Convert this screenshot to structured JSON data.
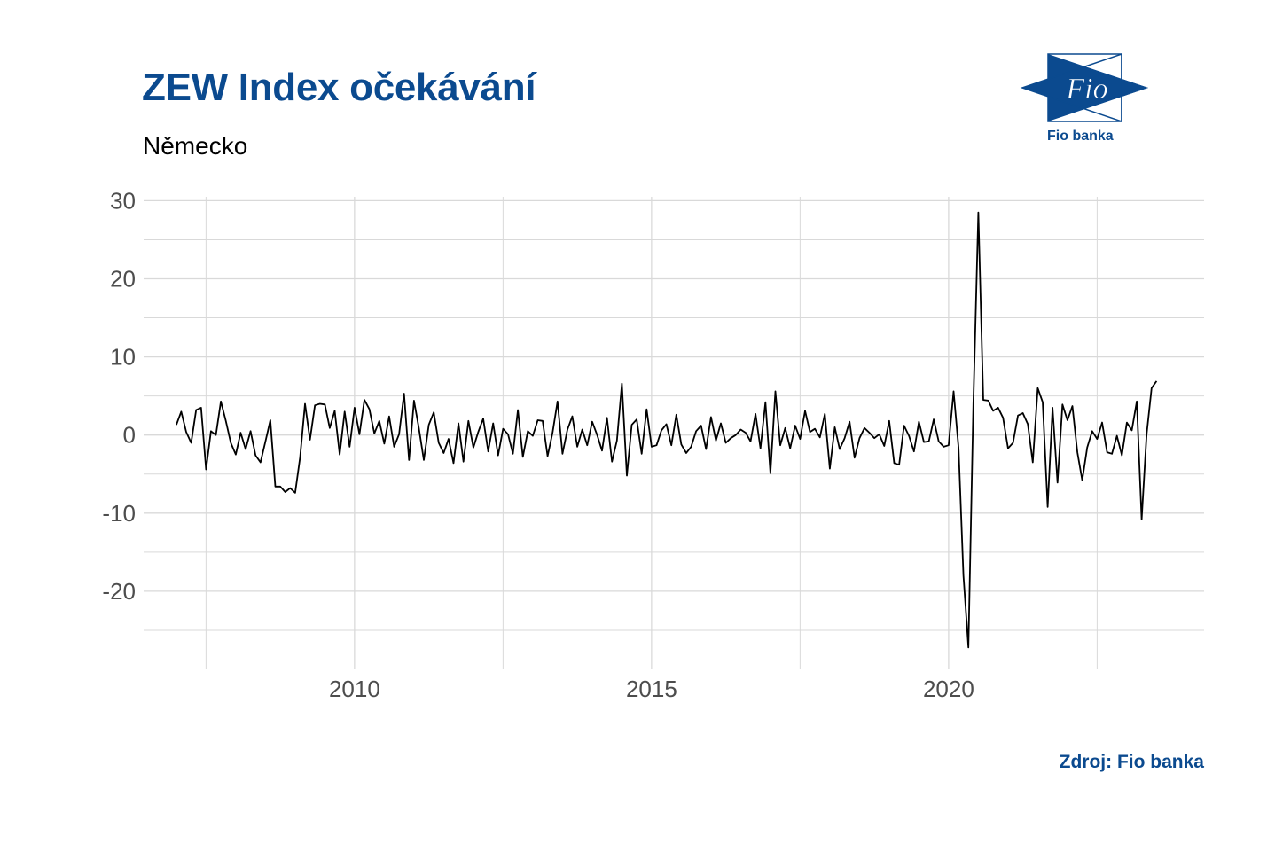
{
  "header": {
    "title": "ZEW Index očekávání",
    "subtitle": "Německo"
  },
  "logo": {
    "mark_text": "Fio",
    "label": "Fio banka"
  },
  "footer": {
    "source": "Zdroj: Fio banka"
  },
  "colors": {
    "brand": "#0b4a8f",
    "line": "#000000",
    "grid": "#d9d9d9"
  },
  "chart_data": {
    "type": "line",
    "title": "ZEW Index očekávání",
    "subtitle": "Německo",
    "xlabel": "",
    "ylabel": "",
    "xlim": [
      2006.45,
      2024.3
    ],
    "ylim": [
      -30,
      30.5
    ],
    "x_ticks": [
      2010,
      2015,
      2020
    ],
    "y_ticks": [
      30,
      20,
      10,
      0,
      -10,
      -20
    ],
    "x_tick_labels": [
      "2010",
      "2015",
      "2020"
    ],
    "y_tick_labels": [
      "30",
      "20",
      "10",
      "0",
      "-10",
      "-20"
    ],
    "grid": true,
    "legend": "none",
    "series": [
      {
        "x_start": 2007.0,
        "x_step": 0.0833333,
        "values": [
          1.3,
          3.0,
          0.4,
          -1.0,
          3.2,
          3.5,
          -4.4,
          0.5,
          0.0,
          4.3,
          1.8,
          -1.0,
          -2.5,
          0.3,
          -1.8,
          0.5,
          -2.6,
          -3.5,
          -0.8,
          1.9,
          -6.6,
          -6.6,
          -7.3,
          -6.8,
          -7.4,
          -2.9,
          4.0,
          -0.6,
          3.8,
          4.0,
          3.9,
          0.9,
          3.1,
          -2.5,
          3.0,
          -1.5,
          3.5,
          0.1,
          4.5,
          3.3,
          0.2,
          1.8,
          -1.1,
          2.4,
          -1.5,
          0.1,
          5.3,
          -3.2,
          4.4,
          0.9,
          -3.2,
          1.3,
          2.9,
          -1.0,
          -2.3,
          -0.5,
          -3.6,
          1.5,
          -3.4,
          1.8,
          -1.6,
          0.4,
          2.1,
          -2.1,
          1.5,
          -2.6,
          0.8,
          0.1,
          -2.4,
          3.2,
          -2.8,
          0.5,
          -0.1,
          1.9,
          1.8,
          -2.7,
          0.3,
          4.3,
          -2.4,
          0.7,
          2.4,
          -1.5,
          0.7,
          -1.3,
          1.7,
          0.0,
          -2.0,
          2.2,
          -3.4,
          -0.7,
          6.6,
          -5.2,
          1.3,
          2.0,
          -2.4,
          3.3,
          -1.5,
          -1.3,
          0.6,
          1.4,
          -1.3,
          2.6,
          -1.2,
          -2.3,
          -1.5,
          0.5,
          1.2,
          -1.8,
          2.3,
          -0.7,
          1.5,
          -1.0,
          -0.4,
          0.0,
          0.7,
          0.3,
          -0.8,
          2.7,
          -1.7,
          4.2,
          -4.9,
          5.6,
          -1.3,
          0.9,
          -1.7,
          1.2,
          -0.5,
          3.1,
          0.4,
          0.8,
          -0.3,
          2.7,
          -4.3,
          1.0,
          -1.8,
          -0.4,
          1.7,
          -2.9,
          -0.4,
          0.9,
          0.3,
          -0.4,
          0.1,
          -1.4,
          1.8,
          -3.6,
          -3.8,
          1.2,
          -0.1,
          -2.1,
          1.7,
          -0.9,
          -0.8,
          2.0,
          -0.8,
          -1.5,
          -1.3,
          5.6,
          -1.6,
          -18.0,
          -27.2,
          4.0,
          28.5,
          4.5,
          4.4,
          3.1,
          3.5,
          2.2,
          -1.7,
          -1.0,
          2.5,
          2.8,
          1.4,
          -3.5,
          6.0,
          4.2,
          -9.2,
          3.5,
          -6.1,
          3.9,
          1.9,
          3.7,
          -2.2,
          -5.8,
          -1.6,
          0.5,
          -0.5,
          1.6,
          -2.2,
          -2.4,
          -0.1,
          -2.6,
          1.6,
          0.6,
          4.3,
          -10.8,
          0.1,
          6.0,
          6.9
        ]
      }
    ]
  }
}
